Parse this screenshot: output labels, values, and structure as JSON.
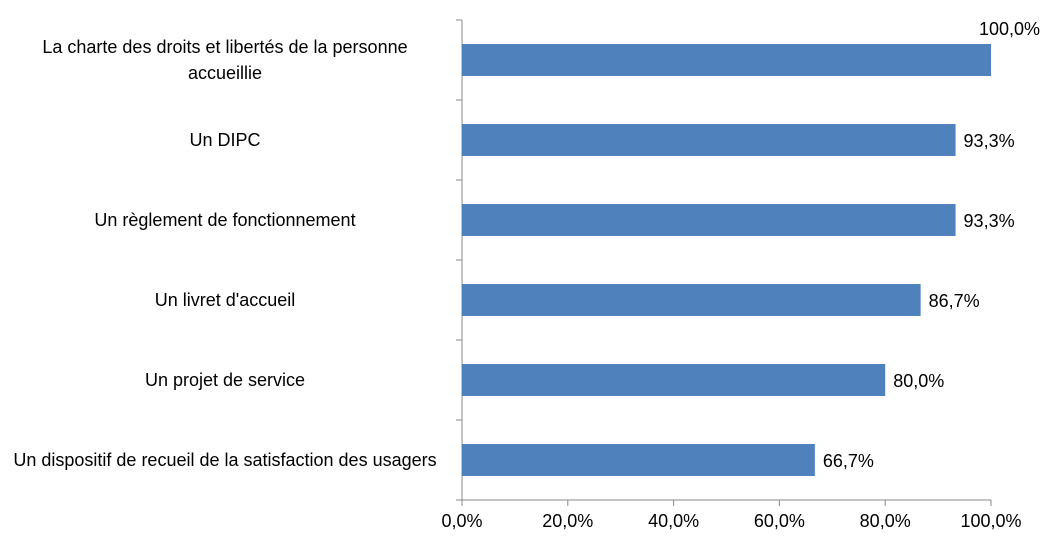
{
  "chart_data": {
    "type": "hbar",
    "categories": [
      "La charte des droits et libertés de la personne accueillie",
      "Un DIPC",
      "Un règlement de fonctionnement",
      "Un livret d'accueil",
      "Un projet de service",
      "Un dispositif de recueil de la satisfaction des usagers"
    ],
    "values": [
      100,
      93.3,
      93.3,
      86.7,
      80,
      66.7
    ],
    "value_labels": [
      "100,0%",
      "93,3%",
      "93,3%",
      "86,7%",
      "80,0%",
      "66,7%"
    ],
    "color": "#4f81bd",
    "xlim": [
      0,
      100
    ],
    "xticks": [
      {
        "value": 0,
        "label": "0,0%"
      },
      {
        "value": 20,
        "label": "20,0%"
      },
      {
        "value": 40,
        "label": "40,0%"
      },
      {
        "value": 60,
        "label": "60,0%"
      },
      {
        "value": 80,
        "label": "80,0%"
      },
      {
        "value": 100,
        "label": "100,0%"
      }
    ],
    "grid": false
  }
}
